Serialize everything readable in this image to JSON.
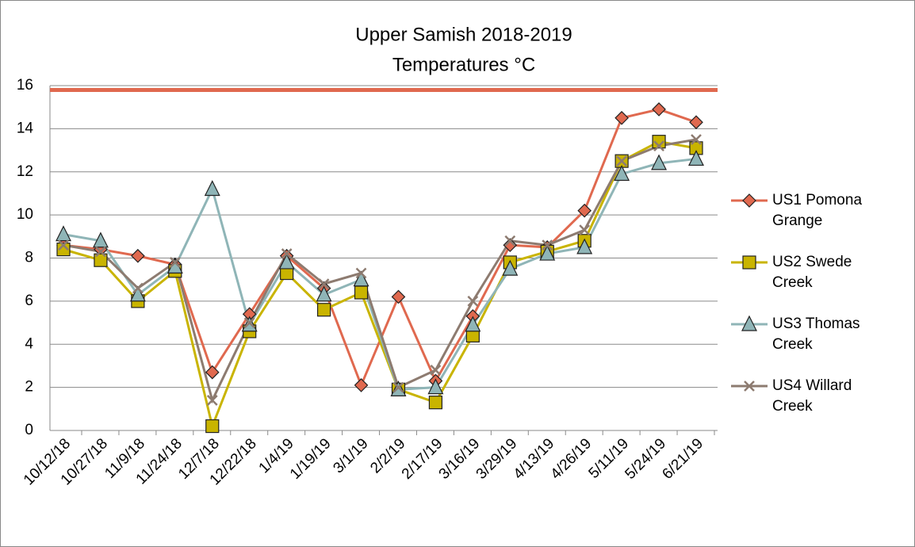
{
  "chart_data": {
    "type": "line",
    "title": "Upper Samish 2018-2019",
    "subtitle": "Temperatures °C",
    "categories": [
      "10/12/18",
      "10/27/18",
      "11/9/18",
      "11/24/18",
      "12/7/18",
      "12/22/18",
      "1/4/19",
      "1/19/19",
      "3/1/19",
      "2/2/19",
      "2/17/19",
      "3/16/19",
      "3/29/19",
      "4/13/19",
      "4/26/19",
      "5/11/19",
      "5/24/19",
      "6/21/19"
    ],
    "series": [
      {
        "name": "US1 Pomona Grange",
        "color": "#e0694f",
        "marker": "diamond",
        "values": [
          8.6,
          8.4,
          8.1,
          7.7,
          2.7,
          5.4,
          8.1,
          6.6,
          2.1,
          6.2,
          2.3,
          5.3,
          8.6,
          8.5,
          10.2,
          14.5,
          14.9,
          14.3
        ]
      },
      {
        "name": "US2 Swede Creek",
        "color": "#c9b400",
        "marker": "square",
        "values": [
          8.4,
          7.9,
          6.0,
          7.4,
          0.2,
          4.6,
          7.3,
          5.6,
          6.4,
          1.9,
          1.3,
          4.4,
          7.8,
          8.3,
          8.8,
          12.5,
          13.4,
          13.1
        ]
      },
      {
        "name": "US3 Thomas Creek",
        "color": "#8fb5b7",
        "marker": "triangle",
        "values": [
          9.1,
          8.8,
          6.3,
          7.6,
          11.2,
          4.9,
          7.8,
          6.3,
          7.0,
          1.9,
          2.0,
          4.9,
          7.5,
          8.2,
          8.5,
          11.9,
          12.4,
          12.6
        ]
      },
      {
        "name": "US4 Willard Creek",
        "color": "#8d7b70",
        "marker": "x",
        "values": [
          8.6,
          8.3,
          6.6,
          7.8,
          1.4,
          5.0,
          8.2,
          6.8,
          7.3,
          2.0,
          2.8,
          6.0,
          8.8,
          8.6,
          9.3,
          12.5,
          13.2,
          13.5
        ]
      }
    ],
    "threshold": {
      "value": 15.8,
      "color": "#e0694f"
    },
    "ylim": [
      0,
      16
    ],
    "yticks": [
      0,
      2,
      4,
      6,
      8,
      10,
      12,
      14,
      16
    ],
    "grid": true,
    "legend": "right"
  }
}
